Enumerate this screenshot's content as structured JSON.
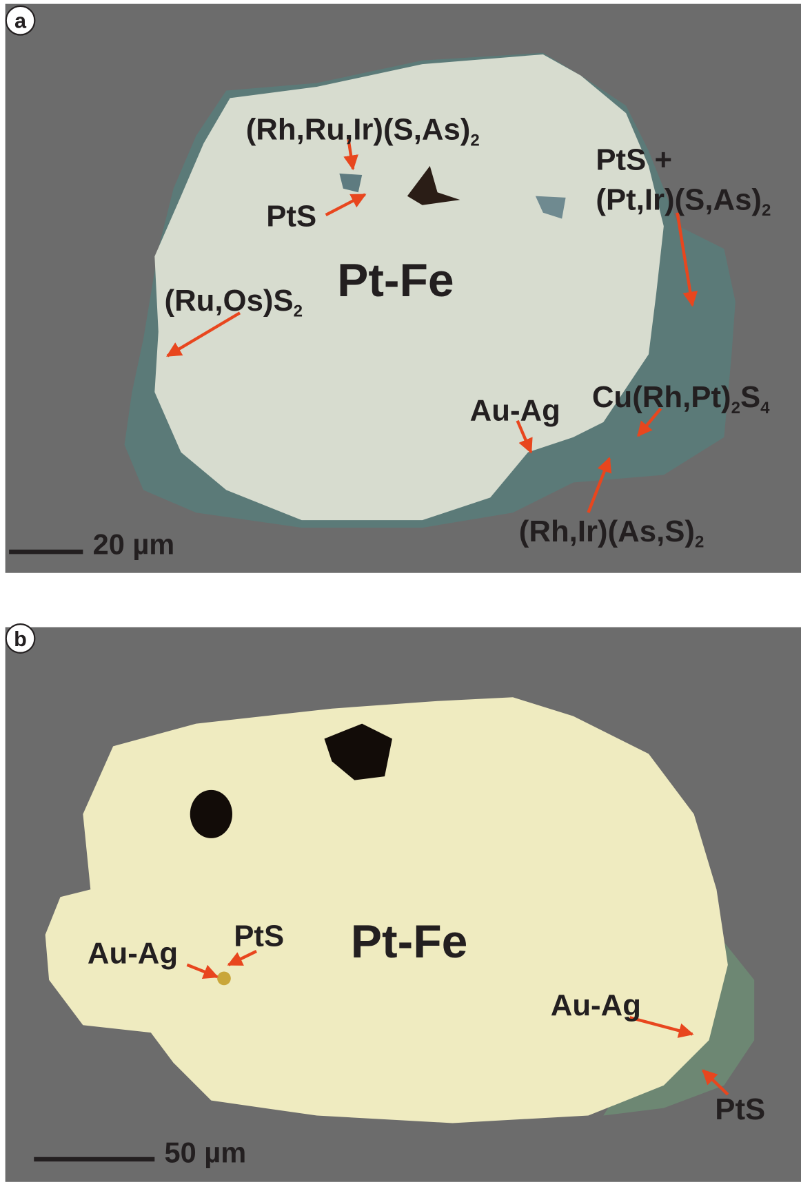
{
  "panels": [
    {
      "label": "a",
      "scale_bar": "20 µm",
      "labels": [
        {
          "segments": [
            {
              "text": "(Rh,Ru,Ir)(S,As)"
            },
            {
              "sub": "2"
            }
          ]
        },
        {
          "segments": [
            {
              "text": "PtS"
            }
          ]
        },
        {
          "segments": [
            {
              "text": "Pt-Fe"
            }
          ]
        },
        {
          "segments": [
            {
              "text": "(Ru,Os)S"
            },
            {
              "sub": "2"
            }
          ]
        },
        {
          "segments": [
            {
              "text": "PtS +"
            }
          ]
        },
        {
          "segments": [
            {
              "text": "(Pt,Ir)(S,As)"
            },
            {
              "sub": "2"
            }
          ]
        },
        {
          "segments": [
            {
              "text": "Cu(Rh,Pt)"
            },
            {
              "sub": "2"
            },
            {
              "text": "S"
            },
            {
              "sub": "4"
            }
          ]
        },
        {
          "segments": [
            {
              "text": "Au-Ag"
            }
          ]
        },
        {
          "segments": [
            {
              "text": "(Rh,Ir)(As,S)"
            },
            {
              "sub": "2"
            }
          ]
        }
      ]
    },
    {
      "label": "b",
      "scale_bar": "50 µm",
      "labels": [
        {
          "segments": [
            {
              "text": "Pt-Fe"
            }
          ]
        },
        {
          "segments": [
            {
              "text": "PtS"
            }
          ]
        },
        {
          "segments": [
            {
              "text": "Au-Ag"
            }
          ]
        },
        {
          "segments": [
            {
              "text": "Au-Ag"
            }
          ]
        },
        {
          "segments": [
            {
              "text": "PtS"
            }
          ]
        }
      ]
    }
  ]
}
